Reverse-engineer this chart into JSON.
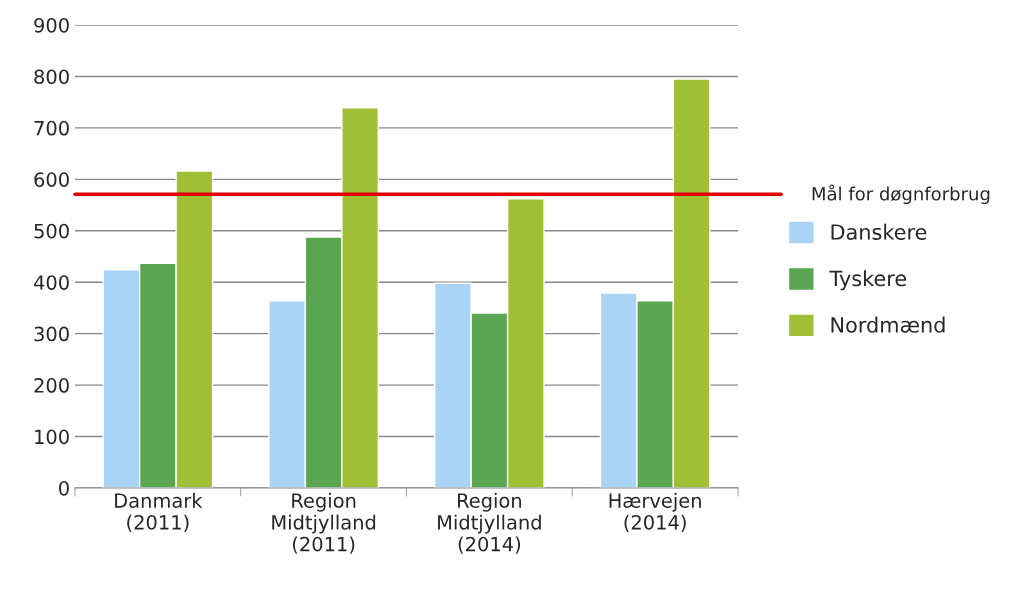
{
  "chart_data": {
    "type": "bar",
    "categories": [
      "Danmark\n(2011)",
      "Region\nMidtjylland\n(2011)",
      "Region\nMidtjylland\n(2014)",
      "Hærvejen\n(2014)"
    ],
    "series": [
      {
        "name": "Danskere",
        "color": "#a9d4f5",
        "values": [
          424,
          364,
          398,
          379
        ]
      },
      {
        "name": "Tyskere",
        "color": "#5aa552",
        "values": [
          437,
          488,
          340,
          364
        ]
      },
      {
        "name": "Nordmænd",
        "color": "#9fbf35",
        "values": [
          616,
          739,
          562,
          795
        ]
      }
    ],
    "ylim": [
      0,
      900
    ],
    "yticks": [
      0,
      100,
      200,
      300,
      400,
      500,
      600,
      700,
      800,
      900
    ],
    "grid": "y",
    "legend": "right",
    "ref_lines": [
      {
        "axis": "y",
        "value": 571,
        "label": "Mål for døgnforbrug",
        "color": "#e00000"
      }
    ]
  }
}
